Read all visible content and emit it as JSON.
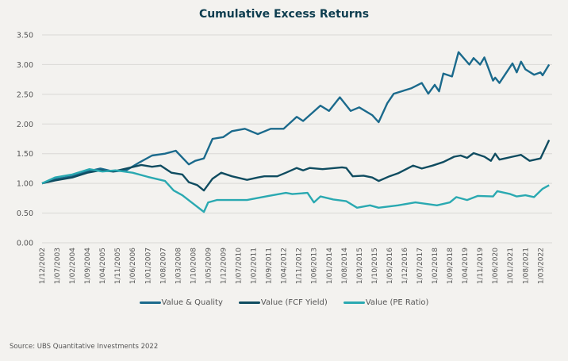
{
  "chart_data": {
    "type": "line",
    "title": "Cumulative Excess Returns",
    "xlabel": "",
    "ylabel": "",
    "ylim": [
      0,
      3.5
    ],
    "yticks": [
      "0.00",
      "0.50",
      "1.00",
      "1.50",
      "2.00",
      "2.50",
      "3.00",
      "3.50"
    ],
    "grid": "horizontal",
    "legend_placement": "bottom",
    "xticks": [
      "1/12/2002",
      "1/07/2003",
      "1/02/2004",
      "1/09/2004",
      "1/04/2005",
      "1/11/2005",
      "1/06/2006",
      "1/01/2007",
      "1/08/2007",
      "1/03/2008",
      "1/10/2008",
      "1/05/2009",
      "1/12/2009",
      "1/07/2010",
      "1/02/2011",
      "1/09/2011",
      "1/04/2012",
      "1/11/2012",
      "1/06/2013",
      "1/01/2014",
      "1/08/2014",
      "1/03/2015",
      "1/10/2015",
      "1/05/2016",
      "1/12/2016",
      "1/07/2017",
      "1/02/2018",
      "1/09/2018",
      "1/04/2019",
      "1/11/2019",
      "1/06/2020",
      "1/01/2021",
      "1/08/2021",
      "1/03/2022"
    ],
    "series": [
      {
        "name": "Value & Quality",
        "color": "#1b6a8c",
        "points": [
          [
            "2002-12",
            1.0
          ],
          [
            "2003-06",
            1.07
          ],
          [
            "2004-02",
            1.12
          ],
          [
            "2004-09",
            1.2
          ],
          [
            "2005-03",
            1.25
          ],
          [
            "2005-09",
            1.2
          ],
          [
            "2006-03",
            1.22
          ],
          [
            "2006-09",
            1.35
          ],
          [
            "2007-03",
            1.47
          ],
          [
            "2007-09",
            1.5
          ],
          [
            "2008-02",
            1.55
          ],
          [
            "2008-08",
            1.32
          ],
          [
            "2008-11",
            1.38
          ],
          [
            "2009-03",
            1.42
          ],
          [
            "2009-07",
            1.75
          ],
          [
            "2009-12",
            1.78
          ],
          [
            "2010-04",
            1.88
          ],
          [
            "2010-10",
            1.92
          ],
          [
            "2011-04",
            1.83
          ],
          [
            "2011-10",
            1.92
          ],
          [
            "2012-04",
            1.92
          ],
          [
            "2012-10",
            2.12
          ],
          [
            "2013-01",
            2.05
          ],
          [
            "2013-09",
            2.31
          ],
          [
            "2014-01",
            2.22
          ],
          [
            "2014-06",
            2.45
          ],
          [
            "2014-11",
            2.22
          ],
          [
            "2015-03",
            2.28
          ],
          [
            "2015-09",
            2.15
          ],
          [
            "2015-12",
            2.03
          ],
          [
            "2016-04",
            2.35
          ],
          [
            "2016-07",
            2.51
          ],
          [
            "2017-03",
            2.6
          ],
          [
            "2017-08",
            2.69
          ],
          [
            "2017-11",
            2.51
          ],
          [
            "2018-02",
            2.66
          ],
          [
            "2018-04",
            2.55
          ],
          [
            "2018-06",
            2.85
          ],
          [
            "2018-10",
            2.8
          ],
          [
            "2019-01",
            3.21
          ],
          [
            "2019-06",
            3.0
          ],
          [
            "2019-08",
            3.11
          ],
          [
            "2019-11",
            3.0
          ],
          [
            "2020-01",
            3.12
          ],
          [
            "2020-05",
            2.73
          ],
          [
            "2020-06",
            2.78
          ],
          [
            "2020-08",
            2.69
          ],
          [
            "2021-02",
            3.02
          ],
          [
            "2021-04",
            2.87
          ],
          [
            "2021-06",
            3.05
          ],
          [
            "2021-08",
            2.92
          ],
          [
            "2021-12",
            2.83
          ],
          [
            "2022-03",
            2.87
          ],
          [
            "2022-04",
            2.82
          ],
          [
            "2022-07",
            3.0
          ]
        ]
      },
      {
        "name": "Value (FCF Yield)",
        "color": "#0f4c60",
        "points": [
          [
            "2002-12",
            1.0
          ],
          [
            "2003-06",
            1.05
          ],
          [
            "2004-02",
            1.1
          ],
          [
            "2004-09",
            1.18
          ],
          [
            "2005-03",
            1.22
          ],
          [
            "2005-09",
            1.2
          ],
          [
            "2006-03",
            1.25
          ],
          [
            "2006-10",
            1.31
          ],
          [
            "2007-03",
            1.28
          ],
          [
            "2007-07",
            1.3
          ],
          [
            "2007-12",
            1.18
          ],
          [
            "2008-05",
            1.15
          ],
          [
            "2008-08",
            1.02
          ],
          [
            "2008-12",
            0.97
          ],
          [
            "2009-03",
            0.88
          ],
          [
            "2009-07",
            1.08
          ],
          [
            "2009-11",
            1.18
          ],
          [
            "2010-04",
            1.12
          ],
          [
            "2010-11",
            1.06
          ],
          [
            "2011-04",
            1.1
          ],
          [
            "2011-07",
            1.12
          ],
          [
            "2012-01",
            1.12
          ],
          [
            "2012-05",
            1.18
          ],
          [
            "2012-10",
            1.26
          ],
          [
            "2013-01",
            1.22
          ],
          [
            "2013-04",
            1.26
          ],
          [
            "2013-10",
            1.24
          ],
          [
            "2014-07",
            1.27
          ],
          [
            "2014-09",
            1.26
          ],
          [
            "2014-12",
            1.12
          ],
          [
            "2015-05",
            1.13
          ],
          [
            "2015-09",
            1.1
          ],
          [
            "2015-12",
            1.04
          ],
          [
            "2016-05",
            1.12
          ],
          [
            "2016-09",
            1.17
          ],
          [
            "2017-04",
            1.3
          ],
          [
            "2017-08",
            1.25
          ],
          [
            "2018-01",
            1.3
          ],
          [
            "2018-06",
            1.36
          ],
          [
            "2018-11",
            1.45
          ],
          [
            "2019-02",
            1.47
          ],
          [
            "2019-05",
            1.43
          ],
          [
            "2019-08",
            1.51
          ],
          [
            "2020-01",
            1.45
          ],
          [
            "2020-04",
            1.38
          ],
          [
            "2020-06",
            1.5
          ],
          [
            "2020-08",
            1.4
          ],
          [
            "2021-02",
            1.45
          ],
          [
            "2021-06",
            1.48
          ],
          [
            "2021-10",
            1.38
          ],
          [
            "2022-03",
            1.42
          ],
          [
            "2022-07",
            1.73
          ]
        ]
      },
      {
        "name": "Value (PE Ratio)",
        "color": "#2aa9b1",
        "points": [
          [
            "2002-12",
            1.0
          ],
          [
            "2003-06",
            1.1
          ],
          [
            "2004-02",
            1.15
          ],
          [
            "2004-10",
            1.24
          ],
          [
            "2005-04",
            1.2
          ],
          [
            "2005-10",
            1.22
          ],
          [
            "2006-06",
            1.18
          ],
          [
            "2007-01",
            1.11
          ],
          [
            "2007-09",
            1.04
          ],
          [
            "2008-01",
            0.88
          ],
          [
            "2008-05",
            0.8
          ],
          [
            "2008-10",
            0.66
          ],
          [
            "2009-03",
            0.52
          ],
          [
            "2009-05",
            0.68
          ],
          [
            "2009-09",
            0.72
          ],
          [
            "2010-04",
            0.72
          ],
          [
            "2010-11",
            0.72
          ],
          [
            "2011-09",
            0.79
          ],
          [
            "2012-05",
            0.84
          ],
          [
            "2012-08",
            0.82
          ],
          [
            "2013-03",
            0.84
          ],
          [
            "2013-06",
            0.68
          ],
          [
            "2013-09",
            0.78
          ],
          [
            "2014-03",
            0.73
          ],
          [
            "2014-09",
            0.7
          ],
          [
            "2015-02",
            0.59
          ],
          [
            "2015-08",
            0.63
          ],
          [
            "2015-12",
            0.59
          ],
          [
            "2016-09",
            0.63
          ],
          [
            "2017-05",
            0.68
          ],
          [
            "2018-03",
            0.63
          ],
          [
            "2018-09",
            0.68
          ],
          [
            "2018-12",
            0.77
          ],
          [
            "2019-05",
            0.72
          ],
          [
            "2019-10",
            0.79
          ],
          [
            "2020-05",
            0.78
          ],
          [
            "2020-07",
            0.87
          ],
          [
            "2021-01",
            0.82
          ],
          [
            "2021-04",
            0.78
          ],
          [
            "2021-08",
            0.8
          ],
          [
            "2021-12",
            0.77
          ],
          [
            "2022-04",
            0.91
          ],
          [
            "2022-07",
            0.97
          ]
        ]
      }
    ]
  },
  "source": "Source: UBS Quantitative Investments 2022",
  "colors": {
    "background": "#f3f2ef",
    "title": "#0d3d4f",
    "grid": "#d9d8d5"
  }
}
